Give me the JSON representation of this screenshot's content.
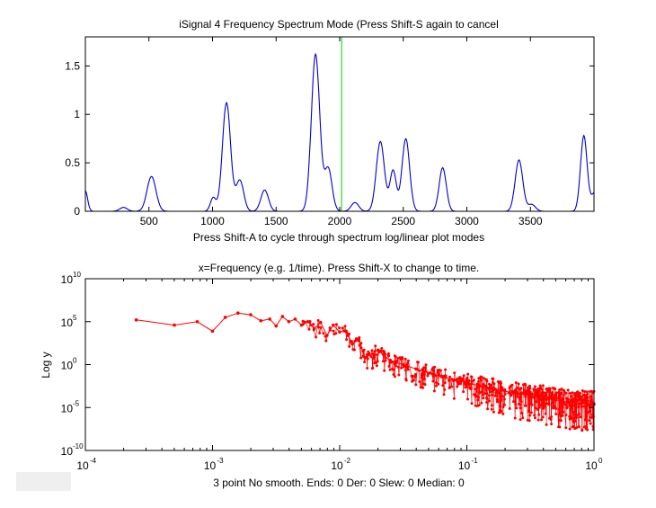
{
  "window": {
    "title": "iSignal 4   Frequency Spectrum Mode (Press Shift-S again to cancel",
    "bottom_status": "3 point No smooth. Ends: 0    Der: 0    Slew: 0    Median: 0",
    "axes_background": "#ffffff",
    "figure_background": "#ffffff"
  },
  "chart_data": [
    {
      "type": "line",
      "title": "iSignal 4   Frequency Spectrum Mode (Press Shift-S again to cancel",
      "xlabel": "Press Shift-A to cycle through spectrum log/linear plot modes",
      "ylabel": "",
      "xlim": [
        0,
        4000
      ],
      "ylim": [
        0,
        1.8
      ],
      "x_ticks": [
        500,
        1000,
        1500,
        2000,
        2500,
        3000,
        3500
      ],
      "x_tick_labels": [
        "500",
        "1000",
        "1500",
        "2000",
        "2500",
        "3000",
        "3500"
      ],
      "y_ticks": [
        0,
        0.5,
        1,
        1.5
      ],
      "y_tick_labels": [
        "0",
        "0.5",
        "1",
        "1.5"
      ],
      "grid": false,
      "line_color": "#0000cc",
      "cursor": {
        "x": 2015,
        "color": "#00cc00"
      },
      "series": [
        {
          "name": "spectrum",
          "peaks": [
            {
              "center": 0,
              "height": 0.21,
              "width": 18
            },
            {
              "center": 300,
              "height": 0.04,
              "width": 30
            },
            {
              "center": 520,
              "height": 0.36,
              "width": 35
            },
            {
              "center": 1005,
              "height": 0.14,
              "width": 22
            },
            {
              "center": 1110,
              "height": 1.12,
              "width": 32
            },
            {
              "center": 1215,
              "height": 0.32,
              "width": 30
            },
            {
              "center": 1410,
              "height": 0.22,
              "width": 30
            },
            {
              "center": 1810,
              "height": 1.62,
              "width": 33
            },
            {
              "center": 1910,
              "height": 0.44,
              "width": 30
            },
            {
              "center": 2120,
              "height": 0.09,
              "width": 30
            },
            {
              "center": 2320,
              "height": 0.72,
              "width": 32
            },
            {
              "center": 2420,
              "height": 0.42,
              "width": 25
            },
            {
              "center": 2520,
              "height": 0.75,
              "width": 30
            },
            {
              "center": 2810,
              "height": 0.45,
              "width": 28
            },
            {
              "center": 3410,
              "height": 0.53,
              "width": 30
            },
            {
              "center": 3510,
              "height": 0.07,
              "width": 30
            },
            {
              "center": 3920,
              "height": 0.78,
              "width": 26
            },
            {
              "center": 4010,
              "height": 0.2,
              "width": 30
            }
          ]
        }
      ]
    },
    {
      "type": "line",
      "title": "x=Frequency (e.g. 1/time). Press Shift-X to change to time.",
      "xlabel": "",
      "ylabel": "Log y",
      "x_scale": "log",
      "y_scale": "log",
      "xlim_exp": [
        -4,
        0
      ],
      "ylim_exp": [
        -10,
        10
      ],
      "x_tick_labels": [
        {
          "base": "10",
          "exp": "-4"
        },
        {
          "base": "10",
          "exp": "-3"
        },
        {
          "base": "10",
          "exp": "-2"
        },
        {
          "base": "10",
          "exp": "-1"
        },
        {
          "base": "10",
          "exp": "0"
        }
      ],
      "y_tick_labels": [
        {
          "base": "10",
          "exp": "10"
        },
        {
          "base": "10",
          "exp": "5"
        },
        {
          "base": "10",
          "exp": "0"
        },
        {
          "base": "10",
          "exp": "-5"
        },
        {
          "base": "10",
          "exp": "-10"
        }
      ],
      "grid": false,
      "line_color": "#ff0000",
      "marker": "dot",
      "series": [
        {
          "name": "power spectrum",
          "points_log10": [
            [
              -3.6,
              5.2
            ],
            [
              -3.3,
              4.6
            ],
            [
              -3.12,
              5.0
            ],
            [
              -3.0,
              3.9
            ],
            [
              -2.9,
              5.5
            ],
            [
              -2.8,
              6.0
            ],
            [
              -2.7,
              5.8
            ],
            [
              -2.62,
              5.1
            ],
            [
              -2.55,
              5.3
            ],
            [
              -2.5,
              4.5
            ],
            [
              -2.45,
              5.6
            ],
            [
              -2.4,
              5.0
            ],
            [
              -2.35,
              5.3
            ],
            [
              -2.3,
              4.6
            ],
            [
              -2.25,
              5.0
            ],
            [
              -2.2,
              4.2
            ],
            [
              -2.15,
              4.9
            ],
            [
              -2.1,
              3.4
            ],
            [
              -2.05,
              4.6
            ],
            [
              -2.0,
              3.8
            ],
            [
              -1.95,
              3.9
            ],
            [
              -1.9,
              2.4
            ],
            [
              -1.85,
              3.0
            ],
            [
              -1.8,
              0.8
            ],
            [
              -1.7,
              1.7
            ],
            [
              -1.6,
              0.4
            ],
            [
              -1.5,
              0.0
            ],
            [
              -1.4,
              -0.5
            ],
            [
              -1.3,
              -1.0
            ],
            [
              -1.2,
              -1.4
            ],
            [
              -1.1,
              -1.8
            ],
            [
              -1.0,
              -2.1
            ],
            [
              -0.9,
              -2.5
            ],
            [
              -0.8,
              -2.8
            ],
            [
              -0.7,
              -3.1
            ],
            [
              -0.6,
              -3.4
            ],
            [
              -0.5,
              -3.6
            ],
            [
              -0.4,
              -3.8
            ],
            [
              -0.3,
              -4.1
            ],
            [
              -0.2,
              -4.4
            ],
            [
              -0.1,
              -4.5
            ],
            [
              0.0,
              -4.6
            ]
          ],
          "scatter_half_range_log10": [
            [
              -2.4,
              0.8
            ],
            [
              -1.9,
              1.5
            ],
            [
              -1.5,
              1.8
            ],
            [
              -1.0,
              2.2
            ],
            [
              -0.5,
              2.8
            ],
            [
              0.0,
              3.0
            ]
          ]
        }
      ]
    }
  ]
}
